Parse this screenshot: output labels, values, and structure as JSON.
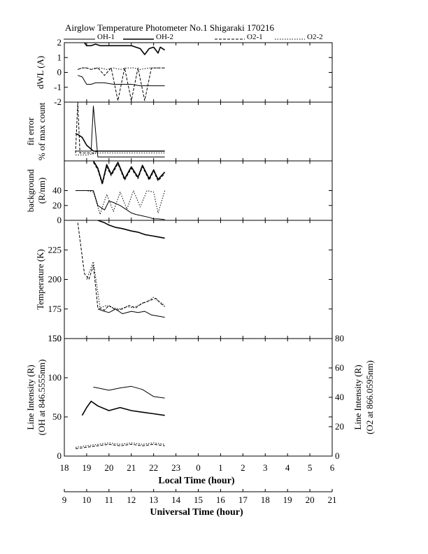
{
  "figure": {
    "title": "Airglow Temperature Photometer No.1  Shigaraki   170216",
    "legend": [
      {
        "label": "OH-1",
        "style": "solid-thin"
      },
      {
        "label": "OH-2",
        "style": "solid-thick"
      },
      {
        "label": "O2-1",
        "style": "dashed"
      },
      {
        "label": "O2-2",
        "style": "dotted"
      }
    ],
    "x_local_label": "Local Time (hour)",
    "x_ut_label": "Universal Time (hour)"
  },
  "chart_data": [
    {
      "type": "line",
      "panel": "dwl",
      "ylabel": "dWL (A)",
      "ylim": [
        -2,
        2
      ],
      "yticks": [
        -2,
        -1,
        0,
        1,
        2
      ],
      "x_axis": "Local Time (hour)",
      "series": [
        {
          "name": "OH-1",
          "x": [
            18.6,
            18.8,
            19.0,
            19.2,
            19.4,
            19.8,
            20.2,
            20.6,
            21.0,
            21.4,
            21.8,
            22.2,
            22.5
          ],
          "y": [
            -0.2,
            -0.3,
            -0.8,
            -0.8,
            -0.7,
            -0.7,
            -0.8,
            -0.8,
            -0.8,
            -0.9,
            -0.9,
            -0.9,
            -0.9
          ]
        },
        {
          "name": "OH-2",
          "x": [
            18.9,
            19.0,
            19.2,
            19.4,
            19.6,
            20.0,
            20.5,
            21.0,
            21.4,
            21.6,
            21.8,
            22.0,
            22.2,
            22.3,
            22.5
          ],
          "y": [
            2.0,
            1.8,
            1.8,
            1.9,
            1.8,
            1.8,
            1.8,
            1.8,
            1.6,
            1.2,
            1.6,
            1.7,
            1.3,
            1.7,
            1.5
          ]
        },
        {
          "name": "O2-1",
          "x": [
            18.6,
            18.8,
            19.0,
            19.2,
            19.5,
            19.8,
            20.1,
            20.4,
            20.7,
            21.0,
            21.3,
            21.6,
            21.9,
            22.2,
            22.5
          ],
          "y": [
            0.2,
            0.3,
            0.3,
            0.2,
            0.3,
            -0.2,
            0.3,
            -1.9,
            0.3,
            -1.9,
            0.3,
            -1.9,
            0.3,
            0.3,
            0.3
          ]
        },
        {
          "name": "O2-2",
          "x": [
            18.6,
            18.8,
            19.0,
            19.2,
            19.4,
            19.6,
            19.9,
            20.2,
            20.5,
            20.8,
            21.1,
            21.4,
            21.8,
            22.1,
            22.5
          ],
          "y": [
            0.2,
            0.3,
            0.3,
            0.2,
            0.3,
            0.3,
            0.2,
            0.3,
            0.2,
            0.3,
            0.3,
            0.2,
            0.3,
            0.3,
            0.3
          ]
        }
      ]
    },
    {
      "type": "line",
      "panel": "fit-error",
      "ylabel": "fit error",
      "ylabel2": "% of max count",
      "ylim": [
        0,
        3
      ],
      "yticks": [],
      "x_axis": "Local Time (hour)",
      "series": [
        {
          "name": "OH-1",
          "x": [
            18.5,
            18.8,
            19.0,
            19.2,
            19.3,
            19.5,
            20.0,
            20.5,
            21.0,
            21.5,
            22.0,
            22.5
          ],
          "y": [
            0.5,
            0.5,
            0.5,
            0.5,
            2.8,
            0.2,
            0.2,
            0.2,
            0.2,
            0.2,
            0.2,
            0.2
          ]
        },
        {
          "name": "OH-2",
          "x": [
            18.5,
            18.6,
            18.8,
            19.0,
            19.3,
            19.5,
            20.0,
            20.5,
            21.0,
            21.5,
            22.0,
            22.5
          ],
          "y": [
            1.4,
            1.35,
            1.2,
            0.8,
            0.5,
            0.5,
            0.5,
            0.5,
            0.5,
            0.5,
            0.5,
            0.5
          ]
        },
        {
          "name": "O2-1",
          "x": [
            18.5,
            18.6,
            18.7,
            19.0,
            19.3,
            19.5,
            20.0,
            20.5,
            21.0,
            21.5,
            22.0,
            22.5
          ],
          "y": [
            0.4,
            3.0,
            0.4,
            0.4,
            0.4,
            0.5,
            0.5,
            0.5,
            0.5,
            0.5,
            0.5,
            0.5
          ]
        },
        {
          "name": "O2-2",
          "x": [
            18.5,
            19.0,
            19.5,
            20.0,
            20.5,
            21.0,
            21.5,
            22.0,
            22.5
          ],
          "y": [
            0.3,
            0.3,
            0.4,
            0.4,
            0.4,
            0.4,
            0.4,
            0.4,
            0.4
          ]
        }
      ]
    },
    {
      "type": "line",
      "panel": "background",
      "ylabel": "background",
      "ylabel2": "(R/nm)",
      "ylim": [
        0,
        80
      ],
      "yticks": [
        0,
        20,
        40
      ],
      "x_axis": "Local Time (hour)",
      "series": [
        {
          "name": "OH-1",
          "x": [
            18.5,
            19.0,
            19.3,
            19.5,
            19.8,
            20.0,
            20.2,
            20.5,
            20.8,
            21.0,
            21.2,
            21.5,
            21.8,
            22.0,
            22.2,
            22.5
          ],
          "y": [
            40,
            40,
            40,
            20,
            14,
            26,
            24,
            20,
            14,
            10,
            8,
            6,
            4,
            2,
            2,
            1
          ]
        },
        {
          "name": "OH-2",
          "x": [
            19.3,
            19.5,
            19.7,
            19.9,
            20.1,
            20.4,
            20.7,
            21.0,
            21.3,
            21.5,
            21.8,
            22.0,
            22.2,
            22.5
          ],
          "y": [
            80,
            70,
            50,
            75,
            62,
            78,
            56,
            72,
            58,
            74,
            56,
            68,
            55,
            65
          ]
        },
        {
          "name": "O2-1",
          "x": [
            19.3,
            19.5,
            19.7,
            19.9,
            20.1,
            20.4,
            20.7,
            21.0,
            21.3,
            21.5,
            21.8,
            22.0,
            22.2,
            22.5
          ],
          "y": [
            78,
            68,
            48,
            72,
            60,
            76,
            54,
            70,
            56,
            72,
            54,
            66,
            53,
            63
          ]
        },
        {
          "name": "O2-2",
          "x": [
            18.5,
            19.0,
            19.3,
            19.6,
            19.9,
            20.2,
            20.5,
            20.8,
            21.1,
            21.4,
            21.7,
            22.0,
            22.2,
            22.5
          ],
          "y": [
            40,
            40,
            38,
            8,
            35,
            12,
            38,
            15,
            40,
            18,
            40,
            38,
            10,
            40
          ]
        }
      ]
    },
    {
      "type": "line",
      "panel": "temperature",
      "ylabel": "Temperature (K)",
      "ylim": [
        150,
        250
      ],
      "yticks": [
        150,
        175,
        200,
        225
      ],
      "x_axis": "Local Time (hour)",
      "series": [
        {
          "name": "OH-1",
          "x": [
            19.5,
            19.8,
            20.0,
            20.3,
            20.6,
            21.0,
            21.3,
            21.6,
            21.9,
            22.2,
            22.5
          ],
          "y": [
            175,
            173,
            172,
            175,
            171,
            173,
            172,
            173,
            170,
            169,
            168
          ]
        },
        {
          "name": "OH-2",
          "x": [
            19.5,
            19.8,
            20.0,
            20.3,
            20.6,
            21.0,
            21.3,
            21.6,
            21.9,
            22.2,
            22.5
          ],
          "y": [
            250,
            248,
            246,
            244,
            243,
            241,
            240,
            238,
            237,
            236,
            235
          ]
        },
        {
          "name": "O2-1",
          "x": [
            18.6,
            18.9,
            19.1,
            19.3,
            19.5,
            19.8,
            20.0,
            20.3,
            20.6,
            20.9,
            21.2,
            21.5,
            21.8,
            22.1,
            22.3,
            22.5
          ],
          "y": [
            248,
            205,
            200,
            212,
            176,
            174,
            178,
            174,
            175,
            178,
            176,
            180,
            182,
            184,
            180,
            177
          ]
        },
        {
          "name": "O2-2",
          "x": [
            19.0,
            19.3,
            19.6,
            19.9,
            20.2,
            20.5,
            20.8,
            21.1,
            21.4,
            21.7,
            22.0,
            22.2,
            22.5
          ],
          "y": [
            200,
            215,
            176,
            178,
            176,
            175,
            177,
            176,
            179,
            181,
            185,
            182,
            178
          ]
        }
      ]
    },
    {
      "type": "line",
      "panel": "line-intensity",
      "ylabel": "Line Intensity (R)",
      "ylabel2": "(OH at 846.5555nm)",
      "ylim": [
        0,
        150
      ],
      "yticks": [
        0,
        50,
        100,
        150
      ],
      "y2label": "Line Intensity (R)",
      "y2label2": "(O2 at 866.0595nm)",
      "y2lim": [
        0,
        80
      ],
      "y2ticks": [
        0,
        20,
        40,
        60,
        80
      ],
      "x_axis": "Local Time (hour)",
      "series": [
        {
          "name": "OH-1",
          "axis": "left",
          "x": [
            19.3,
            19.5,
            20.0,
            20.5,
            21.0,
            21.5,
            22.0,
            22.5
          ],
          "y": [
            88,
            87,
            84,
            87,
            89,
            85,
            76,
            74
          ]
        },
        {
          "name": "OH-2",
          "axis": "left",
          "x": [
            18.8,
            19.0,
            19.2,
            19.5,
            20.0,
            20.5,
            21.0,
            21.5,
            22.0,
            22.5
          ],
          "y": [
            52,
            62,
            70,
            64,
            58,
            62,
            58,
            56,
            54,
            52
          ]
        },
        {
          "name": "O2-1",
          "axis": "right",
          "x": [
            18.5,
            19.0,
            19.5,
            20.0,
            20.5,
            21.0,
            21.5,
            22.0,
            22.5
          ],
          "y": [
            5,
            6,
            7,
            8,
            7,
            8,
            7,
            8,
            7
          ]
        },
        {
          "name": "O2-2",
          "axis": "right",
          "x": [
            18.5,
            19.0,
            19.5,
            20.0,
            20.5,
            21.0,
            21.5,
            22.0,
            22.5
          ],
          "y": [
            6,
            7,
            8,
            9,
            8,
            9,
            8,
            9,
            8
          ]
        }
      ]
    },
    {
      "type": "axis",
      "panel": "time-axes",
      "x_local_ticks": [
        "18",
        "19",
        "20",
        "21",
        "22",
        "23",
        "0",
        "1",
        "2",
        "3",
        "4",
        "5",
        "6"
      ],
      "x_ut_ticks": [
        "9",
        "10",
        "11",
        "12",
        "13",
        "14",
        "15",
        "16",
        "17",
        "18",
        "19",
        "20",
        "21"
      ],
      "xlim_local": [
        18,
        30
      ]
    }
  ]
}
